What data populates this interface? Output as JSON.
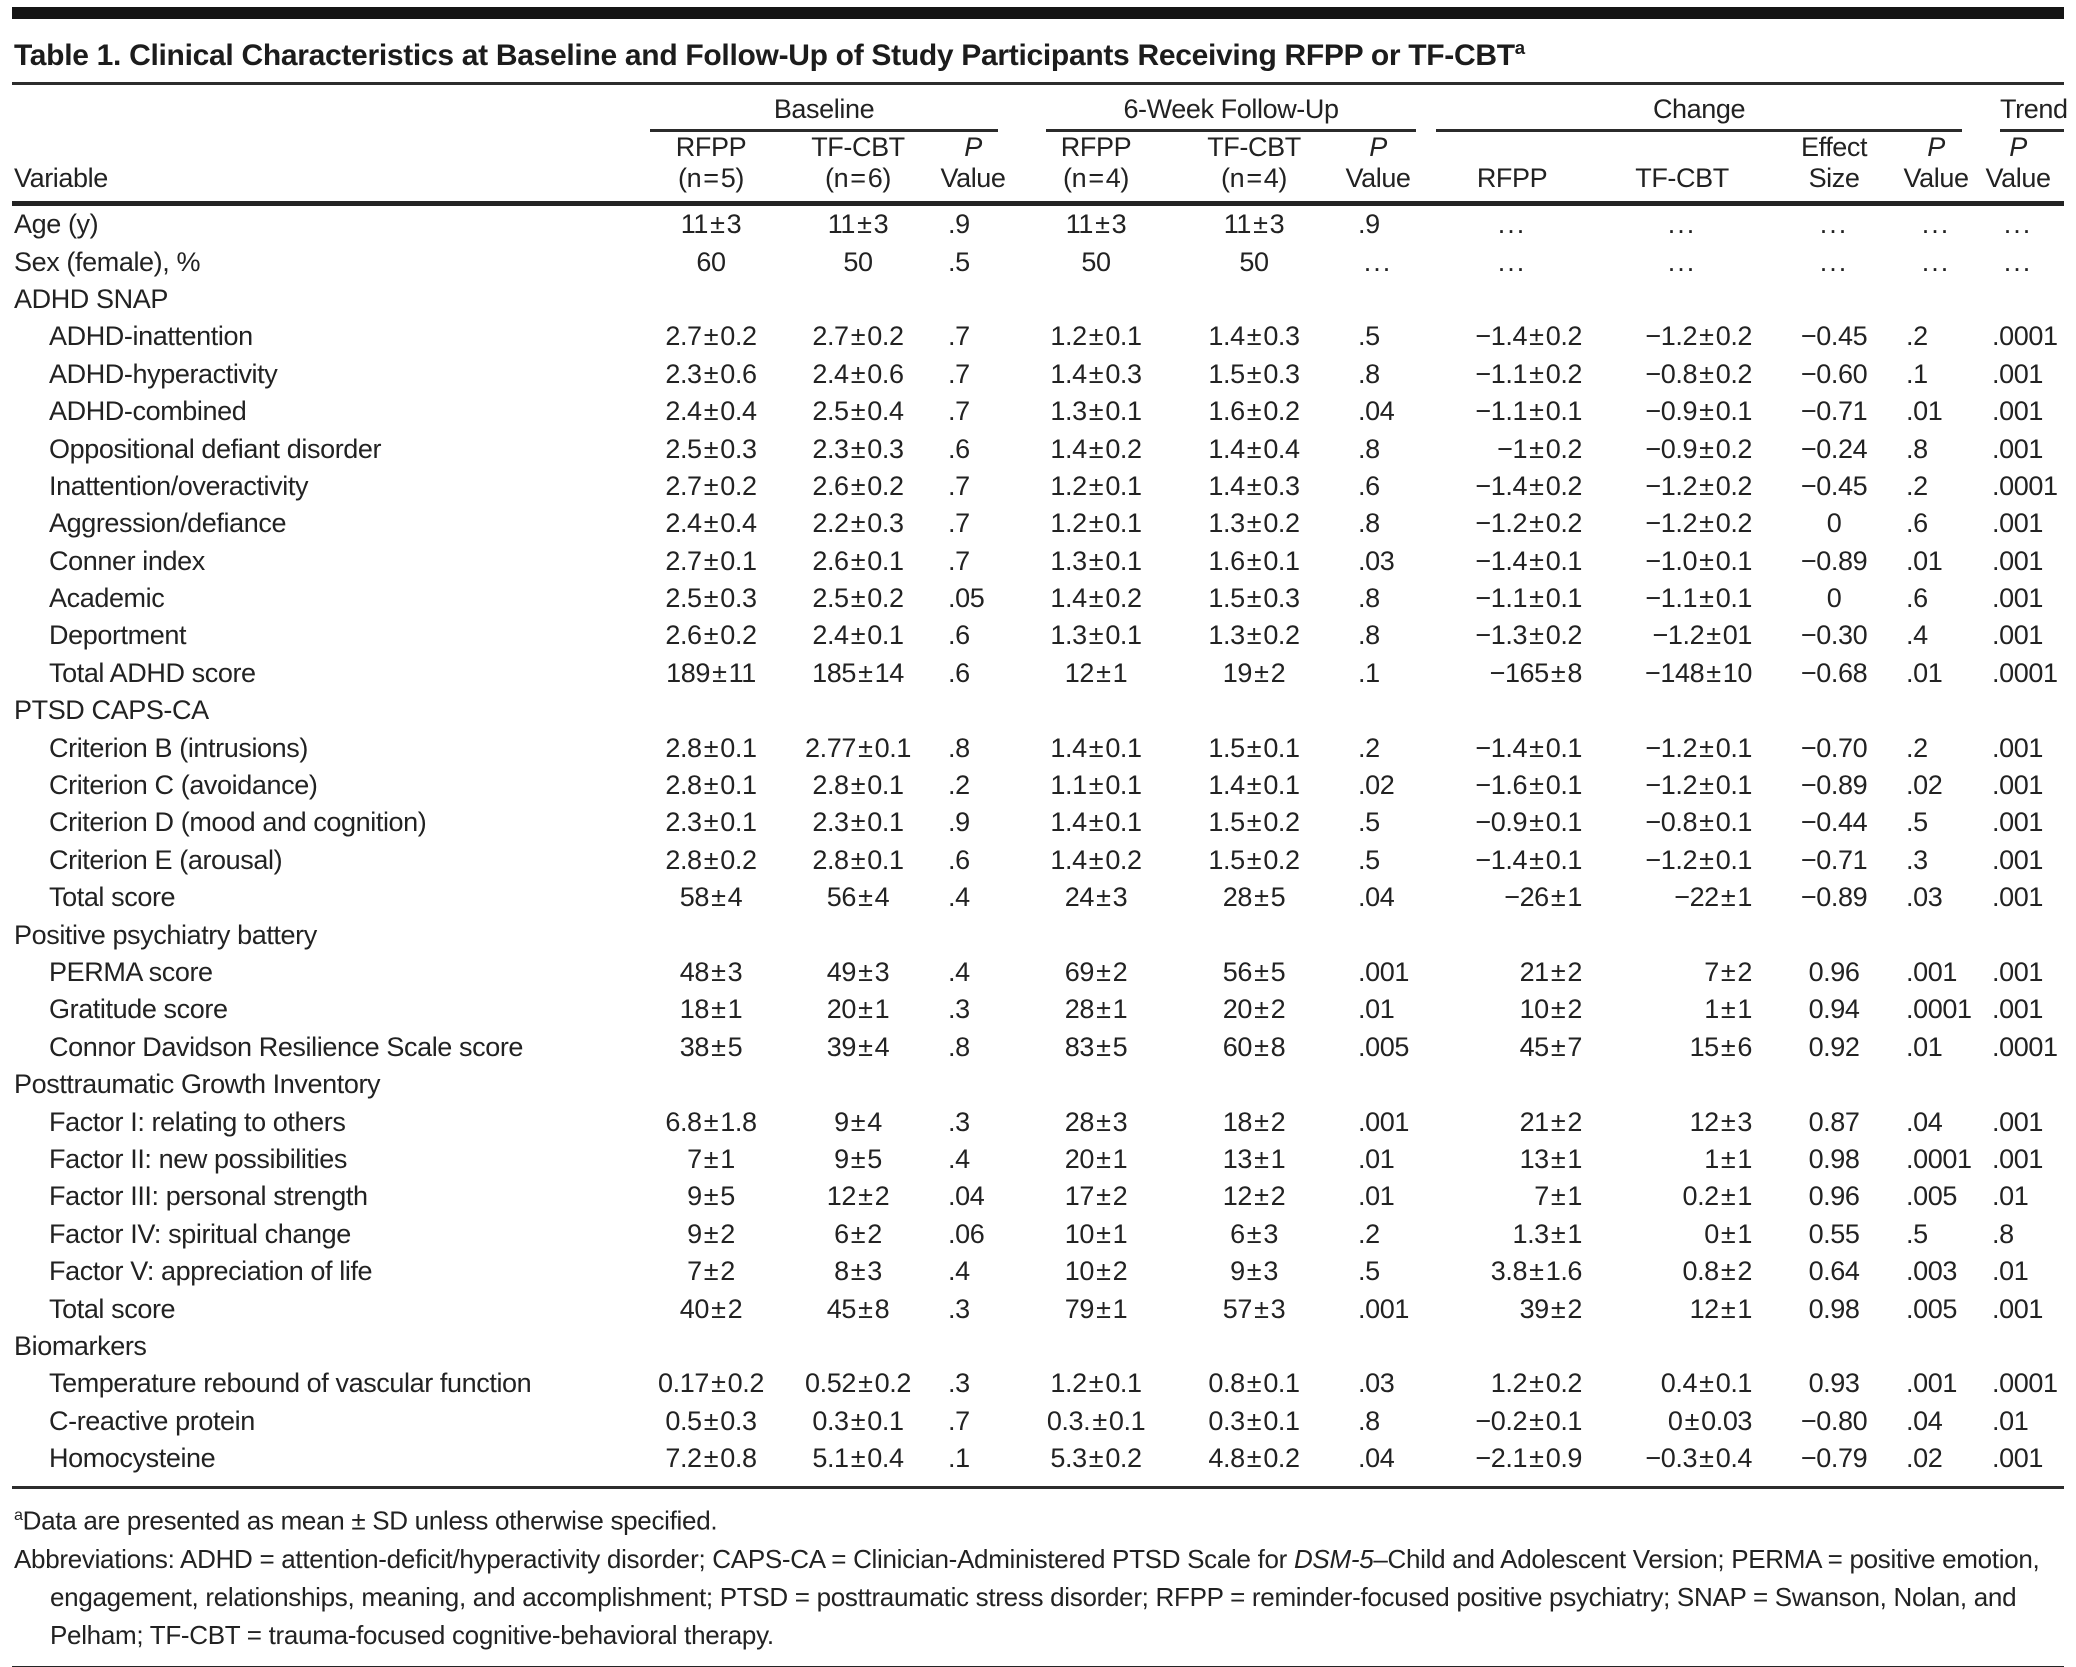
{
  "title": {
    "text": "Table 1. Clinical Characteristics at Baseline and Follow-Up of Study Participants Receiving RFPP or TF-CBT",
    "superscript": "a"
  },
  "header": {
    "variable": "Variable",
    "groups": [
      {
        "label": "Baseline"
      },
      {
        "label": "6-Week Follow-Up"
      },
      {
        "label": "Change"
      },
      {
        "label": "Trend"
      }
    ],
    "columns": [
      {
        "l1": "RFPP",
        "l2": "(n = 5)"
      },
      {
        "l1": "TF-CBT",
        "l2": "(n = 6)"
      },
      {
        "l1": "P",
        "l2": "Value"
      },
      {
        "l1": "RFPP",
        "l2": "(n = 4)"
      },
      {
        "l1": "TF-CBT",
        "l2": "(n = 4)"
      },
      {
        "l1": "P",
        "l2": "Value"
      },
      {
        "l1": "",
        "l2": "RFPP"
      },
      {
        "l1": "",
        "l2": "TF-CBT"
      },
      {
        "l1": "Effect",
        "l2": "Size"
      },
      {
        "l1": "P",
        "l2": "Value"
      },
      {
        "l1": "P",
        "l2": "Value"
      }
    ]
  },
  "table": {
    "rows": [
      {
        "kind": "data",
        "indent": false,
        "label": "Age (y)",
        "values": [
          "11 ± 3",
          "11 ± 3",
          ".9",
          "11 ± 3",
          "11 ± 3",
          ".9",
          "...",
          "...",
          "...",
          "...",
          "..."
        ]
      },
      {
        "kind": "data",
        "indent": false,
        "label": "Sex (female), %",
        "values": [
          "60",
          "50",
          ".5",
          "50",
          "50",
          "...",
          "...",
          "...",
          "...",
          "...",
          "..."
        ]
      },
      {
        "kind": "section",
        "indent": false,
        "label": "ADHD SNAP",
        "values": null
      },
      {
        "kind": "data",
        "indent": true,
        "label": "ADHD-inattention",
        "values": [
          "2.7 ± 0.2",
          "2.7 ± 0.2",
          ".7",
          "1.2 ± 0.1",
          "1.4 ± 0.3",
          ".5",
          "−1.4 ± 0.2",
          "−1.2 ± 0.2",
          "−0.45",
          ".2",
          ".0001"
        ]
      },
      {
        "kind": "data",
        "indent": true,
        "label": "ADHD-hyperactivity",
        "values": [
          "2.3 ± 0.6",
          "2.4 ± 0.6",
          ".7",
          "1.4 ± 0.3",
          "1.5 ± 0.3",
          ".8",
          "−1.1 ± 0.2",
          "−0.8 ± 0.2",
          "−0.60",
          ".1",
          ".001"
        ]
      },
      {
        "kind": "data",
        "indent": true,
        "label": "ADHD-combined",
        "values": [
          "2.4 ± 0.4",
          "2.5 ± 0.4",
          ".7",
          "1.3 ± 0.1",
          "1.6 ± 0.2",
          ".04",
          "−1.1 ± 0.1",
          "−0.9 ± 0.1",
          "−0.71",
          ".01",
          ".001"
        ]
      },
      {
        "kind": "data",
        "indent": true,
        "label": "Oppositional defiant disorder",
        "values": [
          "2.5 ± 0.3",
          "2.3 ± 0.3",
          ".6",
          "1.4 ± 0.2",
          "1.4 ± 0.4",
          ".8",
          "−1 ± 0.2",
          "−0.9 ± 0.2",
          "−0.24",
          ".8",
          ".001"
        ]
      },
      {
        "kind": "data",
        "indent": true,
        "label": "Inattention/overactivity",
        "values": [
          "2.7 ± 0.2",
          "2.6 ± 0.2",
          ".7",
          "1.2 ± 0.1",
          "1.4 ± 0.3",
          ".6",
          "−1.4 ± 0.2",
          "−1.2 ± 0.2",
          "−0.45",
          ".2",
          ".0001"
        ]
      },
      {
        "kind": "data",
        "indent": true,
        "label": "Aggression/defiance",
        "values": [
          "2.4 ± 0.4",
          "2.2 ± 0.3",
          ".7",
          "1.2 ± 0.1",
          "1.3 ± 0.2",
          ".8",
          "−1.2 ± 0.2",
          "−1.2 ± 0.2",
          "0",
          ".6",
          ".001"
        ]
      },
      {
        "kind": "data",
        "indent": true,
        "label": "Conner index",
        "values": [
          "2.7 ± 0.1",
          "2.6 ± 0.1",
          ".7",
          "1.3 ± 0.1",
          "1.6 ± 0.1",
          ".03",
          "−1.4 ± 0.1",
          "−1.0 ± 0.1",
          "−0.89",
          ".01",
          ".001"
        ]
      },
      {
        "kind": "data",
        "indent": true,
        "label": "Academic",
        "values": [
          "2.5 ± 0.3",
          "2.5 ± 0.2",
          ".05",
          "1.4 ± 0.2",
          "1.5 ± 0.3",
          ".8",
          "−1.1 ± 0.1",
          "−1.1 ± 0.1",
          "0",
          ".6",
          ".001"
        ]
      },
      {
        "kind": "data",
        "indent": true,
        "label": "Deportment",
        "values": [
          "2.6 ± 0.2",
          "2.4 ± 0.1",
          ".6",
          "1.3 ± 0.1",
          "1.3 ± 0.2",
          ".8",
          "−1.3 ± 0.2",
          "−1.2 ± 01",
          "−0.30",
          ".4",
          ".001"
        ]
      },
      {
        "kind": "data",
        "indent": true,
        "label": "Total ADHD score",
        "values": [
          "189 ± 11",
          "185 ± 14",
          ".6",
          "12 ± 1",
          "19 ± 2",
          ".1",
          "−165 ± 8",
          "−148 ± 10",
          "−0.68",
          ".01",
          ".0001"
        ]
      },
      {
        "kind": "section",
        "indent": false,
        "label": "PTSD CAPS-CA",
        "values": null
      },
      {
        "kind": "data",
        "indent": true,
        "label": "Criterion B (intrusions)",
        "values": [
          "2.8 ± 0.1",
          "2.77 ± 0.1",
          ".8",
          "1.4 ± 0.1",
          "1.5 ± 0.1",
          ".2",
          "−1.4 ± 0.1",
          "−1.2 ± 0.1",
          "−0.70",
          ".2",
          ".001"
        ]
      },
      {
        "kind": "data",
        "indent": true,
        "label": "Criterion C (avoidance)",
        "values": [
          "2.8 ± 0.1",
          "2.8 ± 0.1",
          ".2",
          "1.1 ± 0.1",
          "1.4 ± 0.1",
          ".02",
          "−1.6 ± 0.1",
          "−1.2 ± 0.1",
          "−0.89",
          ".02",
          ".001"
        ]
      },
      {
        "kind": "data",
        "indent": true,
        "label": "Criterion D (mood and cognition)",
        "values": [
          "2.3 ± 0.1",
          "2.3 ± 0.1",
          ".9",
          "1.4 ± 0.1",
          "1.5 ± 0.2",
          ".5",
          "−0.9 ± 0.1",
          "−0.8 ± 0.1",
          "−0.44",
          ".5",
          ".001"
        ]
      },
      {
        "kind": "data",
        "indent": true,
        "label": "Criterion E (arousal)",
        "values": [
          "2.8 ± 0.2",
          "2.8 ± 0.1",
          ".6",
          "1.4 ± 0.2",
          "1.5 ± 0.2",
          ".5",
          "−1.4 ± 0.1",
          "−1.2 ± 0.1",
          "−0.71",
          ".3",
          ".001"
        ]
      },
      {
        "kind": "data",
        "indent": true,
        "label": "Total score",
        "values": [
          "58 ± 4",
          "56 ± 4",
          ".4",
          "24 ± 3",
          "28 ± 5",
          ".04",
          "−26 ± 1",
          "−22 ± 1",
          "−0.89",
          ".03",
          ".001"
        ]
      },
      {
        "kind": "section",
        "indent": false,
        "label": "Positive psychiatry battery",
        "values": null
      },
      {
        "kind": "data",
        "indent": true,
        "label": "PERMA score",
        "values": [
          "48 ± 3",
          "49 ± 3",
          ".4",
          "69 ± 2",
          "56 ± 5",
          ".001",
          "21 ± 2",
          "7 ± 2",
          "0.96",
          ".001",
          ".001"
        ]
      },
      {
        "kind": "data",
        "indent": true,
        "label": "Gratitude score",
        "values": [
          "18 ± 1",
          "20 ± 1",
          ".3",
          "28 ± 1",
          "20 ± 2",
          ".01",
          "10 ± 2",
          "1 ± 1",
          "0.94",
          ".0001",
          ".001"
        ]
      },
      {
        "kind": "data",
        "indent": true,
        "label": "Connor Davidson Resilience Scale score",
        "values": [
          "38 ± 5",
          "39 ± 4",
          ".8",
          "83 ± 5",
          "60 ± 8",
          ".005",
          "45 ± 7",
          "15 ± 6",
          "0.92",
          ".01",
          ".0001"
        ]
      },
      {
        "kind": "section",
        "indent": false,
        "label": "Posttraumatic Growth Inventory",
        "values": null
      },
      {
        "kind": "data",
        "indent": true,
        "label": "Factor I: relating to others",
        "values": [
          "6.8 ± 1.8",
          "9 ± 4",
          ".3",
          "28 ± 3",
          "18 ± 2",
          ".001",
          "21 ± 2",
          "12 ± 3",
          "0.87",
          ".04",
          ".001"
        ]
      },
      {
        "kind": "data",
        "indent": true,
        "label": "Factor II: new possibilities",
        "values": [
          "7 ± 1",
          "9 ± 5",
          ".4",
          "20 ± 1",
          "13 ± 1",
          ".01",
          "13 ± 1",
          "1 ± 1",
          "0.98",
          ".0001",
          ".001"
        ]
      },
      {
        "kind": "data",
        "indent": true,
        "label": "Factor III: personal strength",
        "values": [
          "9 ± 5",
          "12 ± 2",
          ".04",
          "17 ± 2",
          "12 ± 2",
          ".01",
          "7 ± 1",
          "0.2 ± 1",
          "0.96",
          ".005",
          ".01"
        ]
      },
      {
        "kind": "data",
        "indent": true,
        "label": "Factor IV: spiritual change",
        "values": [
          "9 ± 2",
          "6 ± 2",
          ".06",
          "10 ± 1",
          "6 ± 3",
          ".2",
          "1.3 ± 1",
          "0 ± 1",
          "0.55",
          ".5",
          ".8"
        ]
      },
      {
        "kind": "data",
        "indent": true,
        "label": "Factor V: appreciation of life",
        "values": [
          "7 ± 2",
          "8 ± 3",
          ".4",
          "10 ± 2",
          "9 ± 3",
          ".5",
          "3.8 ± 1.6",
          "0.8 ± 2",
          "0.64",
          ".003",
          ".01"
        ]
      },
      {
        "kind": "data",
        "indent": true,
        "label": "Total score",
        "values": [
          "40 ± 2",
          "45 ± 8",
          ".3",
          "79 ± 1",
          "57 ± 3",
          ".001",
          "39 ± 2",
          "12 ± 1",
          "0.98",
          ".005",
          ".001"
        ]
      },
      {
        "kind": "section",
        "indent": false,
        "label": "Biomarkers",
        "values": null
      },
      {
        "kind": "data",
        "indent": true,
        "label": "Temperature rebound of vascular function",
        "values": [
          "0.17 ± 0.2",
          "0.52 ± 0.2",
          ".3",
          "1.2 ± 0.1",
          "0.8 ± 0.1",
          ".03",
          "1.2 ± 0.2",
          "0.4 ± 0.1",
          "0.93",
          ".001",
          ".0001"
        ]
      },
      {
        "kind": "data",
        "indent": true,
        "label": "C-reactive protein",
        "values": [
          "0.5 ± 0.3",
          "0.3 ± 0.1",
          ".7",
          "0.3. ± 0.1",
          "0.3 ± 0.1",
          ".8",
          "−0.2 ± 0.1",
          "0 ± 0.03",
          "−0.80",
          ".04",
          ".01"
        ]
      },
      {
        "kind": "data",
        "indent": true,
        "label": "Homocysteine",
        "values": [
          "7.2 ± 0.8",
          "5.1 ± 0.4",
          ".1",
          "5.3 ± 0.2",
          "4.8 ± 0.2",
          ".04",
          "−2.1 ± 0.9",
          "−0.3 ± 0.4",
          "−0.79",
          ".02",
          ".001"
        ]
      }
    ]
  },
  "footnotes": {
    "a_mark": "a",
    "a_text": "Data are presented as mean ± SD unless otherwise specified.",
    "abbr_pre": "Abbreviations: ADHD = attention-deficit/hyperactivity disorder; CAPS-CA = Clinician-Administered PTSD Scale for ",
    "abbr_italic": "DSM-5",
    "abbr_post": "–Child and Adolescent Version; PERMA = positive emotion, engagement, relationships, meaning, and accomplishment; PTSD = posttraumatic stress disorder; RFPP = reminder-focused positive psychiatry; SNAP = Swanson, Nolan, and Pelham; TF-CBT = trauma-focused cognitive-behavioral therapy."
  }
}
